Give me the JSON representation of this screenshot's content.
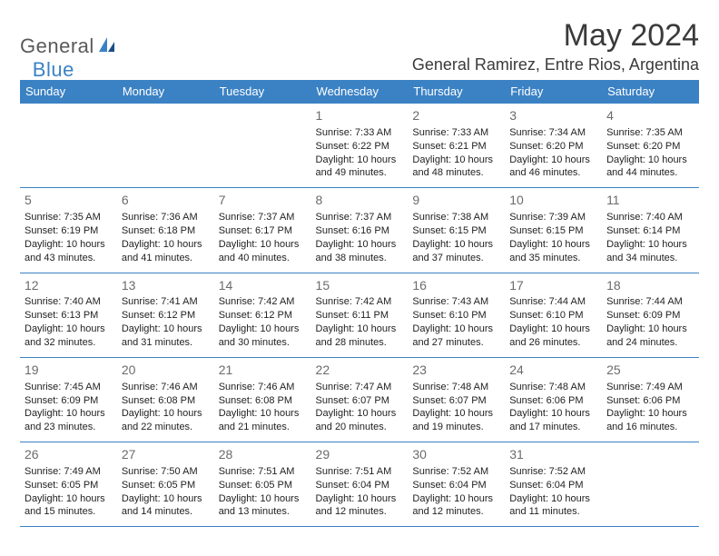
{
  "logo": {
    "text1": "General",
    "text2": "Blue"
  },
  "title": "May 2024",
  "location": "General Ramirez, Entre Rios, Argentina",
  "colors": {
    "header_bg": "#3b82c4",
    "header_text": "#ffffff",
    "border": "#3b82c4",
    "daynum": "#6b6b6b",
    "body_text": "#222222",
    "logo_gray": "#5a5a5a",
    "logo_blue": "#3b82c4"
  },
  "weekdays": [
    "Sunday",
    "Monday",
    "Tuesday",
    "Wednesday",
    "Thursday",
    "Friday",
    "Saturday"
  ],
  "weeks": [
    [
      null,
      null,
      null,
      {
        "n": "1",
        "sunrise": "7:33 AM",
        "sunset": "6:22 PM",
        "daylight": "10 hours and 49 minutes."
      },
      {
        "n": "2",
        "sunrise": "7:33 AM",
        "sunset": "6:21 PM",
        "daylight": "10 hours and 48 minutes."
      },
      {
        "n": "3",
        "sunrise": "7:34 AM",
        "sunset": "6:20 PM",
        "daylight": "10 hours and 46 minutes."
      },
      {
        "n": "4",
        "sunrise": "7:35 AM",
        "sunset": "6:20 PM",
        "daylight": "10 hours and 44 minutes."
      }
    ],
    [
      {
        "n": "5",
        "sunrise": "7:35 AM",
        "sunset": "6:19 PM",
        "daylight": "10 hours and 43 minutes."
      },
      {
        "n": "6",
        "sunrise": "7:36 AM",
        "sunset": "6:18 PM",
        "daylight": "10 hours and 41 minutes."
      },
      {
        "n": "7",
        "sunrise": "7:37 AM",
        "sunset": "6:17 PM",
        "daylight": "10 hours and 40 minutes."
      },
      {
        "n": "8",
        "sunrise": "7:37 AM",
        "sunset": "6:16 PM",
        "daylight": "10 hours and 38 minutes."
      },
      {
        "n": "9",
        "sunrise": "7:38 AM",
        "sunset": "6:15 PM",
        "daylight": "10 hours and 37 minutes."
      },
      {
        "n": "10",
        "sunrise": "7:39 AM",
        "sunset": "6:15 PM",
        "daylight": "10 hours and 35 minutes."
      },
      {
        "n": "11",
        "sunrise": "7:40 AM",
        "sunset": "6:14 PM",
        "daylight": "10 hours and 34 minutes."
      }
    ],
    [
      {
        "n": "12",
        "sunrise": "7:40 AM",
        "sunset": "6:13 PM",
        "daylight": "10 hours and 32 minutes."
      },
      {
        "n": "13",
        "sunrise": "7:41 AM",
        "sunset": "6:12 PM",
        "daylight": "10 hours and 31 minutes."
      },
      {
        "n": "14",
        "sunrise": "7:42 AM",
        "sunset": "6:12 PM",
        "daylight": "10 hours and 30 minutes."
      },
      {
        "n": "15",
        "sunrise": "7:42 AM",
        "sunset": "6:11 PM",
        "daylight": "10 hours and 28 minutes."
      },
      {
        "n": "16",
        "sunrise": "7:43 AM",
        "sunset": "6:10 PM",
        "daylight": "10 hours and 27 minutes."
      },
      {
        "n": "17",
        "sunrise": "7:44 AM",
        "sunset": "6:10 PM",
        "daylight": "10 hours and 26 minutes."
      },
      {
        "n": "18",
        "sunrise": "7:44 AM",
        "sunset": "6:09 PM",
        "daylight": "10 hours and 24 minutes."
      }
    ],
    [
      {
        "n": "19",
        "sunrise": "7:45 AM",
        "sunset": "6:09 PM",
        "daylight": "10 hours and 23 minutes."
      },
      {
        "n": "20",
        "sunrise": "7:46 AM",
        "sunset": "6:08 PM",
        "daylight": "10 hours and 22 minutes."
      },
      {
        "n": "21",
        "sunrise": "7:46 AM",
        "sunset": "6:08 PM",
        "daylight": "10 hours and 21 minutes."
      },
      {
        "n": "22",
        "sunrise": "7:47 AM",
        "sunset": "6:07 PM",
        "daylight": "10 hours and 20 minutes."
      },
      {
        "n": "23",
        "sunrise": "7:48 AM",
        "sunset": "6:07 PM",
        "daylight": "10 hours and 19 minutes."
      },
      {
        "n": "24",
        "sunrise": "7:48 AM",
        "sunset": "6:06 PM",
        "daylight": "10 hours and 17 minutes."
      },
      {
        "n": "25",
        "sunrise": "7:49 AM",
        "sunset": "6:06 PM",
        "daylight": "10 hours and 16 minutes."
      }
    ],
    [
      {
        "n": "26",
        "sunrise": "7:49 AM",
        "sunset": "6:05 PM",
        "daylight": "10 hours and 15 minutes."
      },
      {
        "n": "27",
        "sunrise": "7:50 AM",
        "sunset": "6:05 PM",
        "daylight": "10 hours and 14 minutes."
      },
      {
        "n": "28",
        "sunrise": "7:51 AM",
        "sunset": "6:05 PM",
        "daylight": "10 hours and 13 minutes."
      },
      {
        "n": "29",
        "sunrise": "7:51 AM",
        "sunset": "6:04 PM",
        "daylight": "10 hours and 12 minutes."
      },
      {
        "n": "30",
        "sunrise": "7:52 AM",
        "sunset": "6:04 PM",
        "daylight": "10 hours and 12 minutes."
      },
      {
        "n": "31",
        "sunrise": "7:52 AM",
        "sunset": "6:04 PM",
        "daylight": "10 hours and 11 minutes."
      },
      null
    ]
  ],
  "labels": {
    "sunrise": "Sunrise:",
    "sunset": "Sunset:",
    "daylight": "Daylight:"
  }
}
